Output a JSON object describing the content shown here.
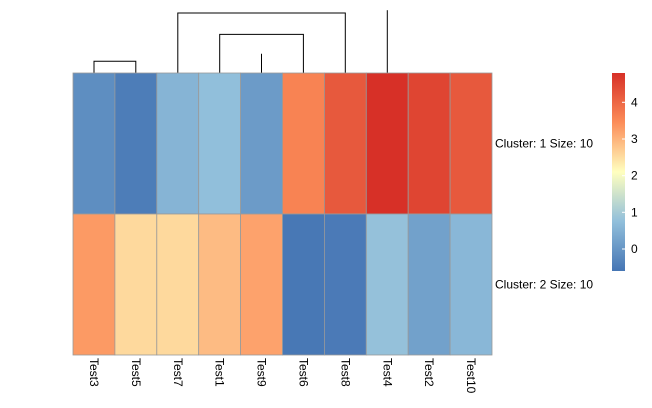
{
  "chart_data": {
    "type": "heatmap",
    "title": "",
    "columns": [
      "Test3",
      "Test5",
      "Test7",
      "Test1",
      "Test9",
      "Test6",
      "Test8",
      "Test4",
      "Test2",
      "Test10"
    ],
    "rows": [
      "Cluster: 1 Size: 10",
      "Cluster: 2 Size: 10"
    ],
    "values": [
      [
        -0.15,
        -0.45,
        0.55,
        0.75,
        0.1,
        3.6,
        4.2,
        4.8,
        4.5,
        4.2
      ],
      [
        3.3,
        2.55,
        2.55,
        2.9,
        3.2,
        -0.55,
        -0.5,
        0.8,
        0.2,
        0.6
      ]
    ],
    "color_scale": {
      "min": -0.6,
      "max": 4.8,
      "stops": [
        {
          "value": -0.6,
          "color": "#4575b4"
        },
        {
          "value": 0.75,
          "color": "#91bfdb"
        },
        {
          "value": 2.1,
          "color": "#ffffbf"
        },
        {
          "value": 3.45,
          "color": "#fc8d59"
        },
        {
          "value": 4.8,
          "color": "#d73027"
        }
      ]
    },
    "legend": {
      "ticks": [
        0,
        1,
        2,
        3,
        4
      ],
      "position": "right"
    },
    "column_dendrogram": {
      "leaves": 10,
      "merges": [
        [
          1,
          2,
          0.05
        ],
        [
          3,
          4,
          0.13
        ],
        [
          -1,
          -2,
          0.17
        ],
        [
          6,
          7,
          0.28
        ],
        [
          8,
          9,
          0.65
        ],
        [
          -5,
          10,
          0.28
        ],
        [
          -4,
          -6,
          0.56
        ],
        [
          -3,
          -7,
          0.87
        ],
        [
          -8,
          5,
          0.91
        ],
        [
          11,
          12,
          1.0
        ]
      ]
    },
    "row_dendrogram": {
      "leaves": 2,
      "merges": [
        [
          1,
          2,
          1.0
        ]
      ]
    },
    "grid": true
  }
}
